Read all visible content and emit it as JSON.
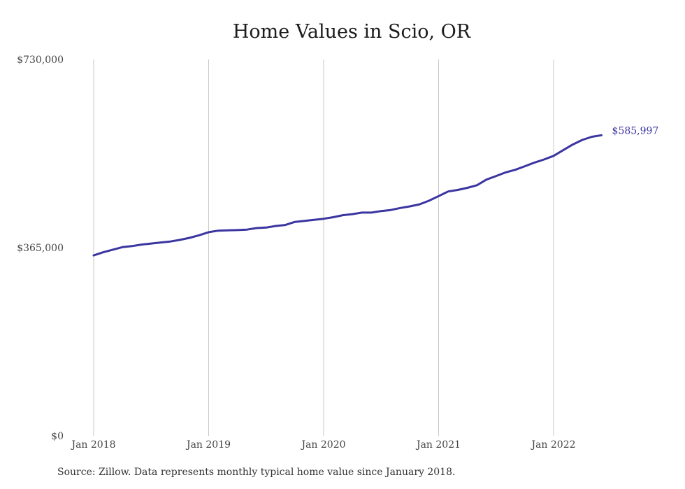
{
  "chart_data": {
    "type": "line",
    "title": "Home Values in Scio, OR",
    "ylim": [
      0,
      730000
    ],
    "yticks": [
      {
        "value": 730000,
        "label": "$730,000"
      },
      {
        "value": 365000,
        "label": "$365,000"
      },
      {
        "value": 0,
        "label": "$0"
      }
    ],
    "xticks": [
      {
        "x": "2018-01",
        "label": "Jan 2018"
      },
      {
        "x": "2019-01",
        "label": "Jan 2019"
      },
      {
        "x": "2020-01",
        "label": "Jan 2020"
      },
      {
        "x": "2021-01",
        "label": "Jan 2021"
      },
      {
        "x": "2022-01",
        "label": "Jan 2022"
      }
    ],
    "xlim": [
      "2018-01",
      "2022-06"
    ],
    "grid": "vertical",
    "series": [
      {
        "color": "#3a35a0",
        "end_label": "$585,997",
        "x": [
          "2018-01",
          "2018-02",
          "2018-03",
          "2018-04",
          "2018-05",
          "2018-06",
          "2018-07",
          "2018-08",
          "2018-09",
          "2018-10",
          "2018-11",
          "2018-12",
          "2019-01",
          "2019-02",
          "2019-03",
          "2019-04",
          "2019-05",
          "2019-06",
          "2019-07",
          "2019-08",
          "2019-09",
          "2019-10",
          "2019-11",
          "2019-12",
          "2020-01",
          "2020-02",
          "2020-03",
          "2020-04",
          "2020-05",
          "2020-06",
          "2020-07",
          "2020-08",
          "2020-09",
          "2020-10",
          "2020-11",
          "2020-12",
          "2021-01",
          "2021-02",
          "2021-03",
          "2021-04",
          "2021-05",
          "2021-06",
          "2021-07",
          "2021-08",
          "2021-09",
          "2021-10",
          "2021-11",
          "2021-12",
          "2022-01",
          "2022-02",
          "2022-03",
          "2022-04",
          "2022-05",
          "2022-06"
        ],
        "values": [
          350000,
          356000,
          361000,
          366000,
          368000,
          371000,
          373000,
          375000,
          377000,
          380000,
          384000,
          389000,
          395000,
          398000,
          398500,
          399000,
          400000,
          403000,
          404000,
          407000,
          409000,
          415000,
          417000,
          419000,
          421000,
          424000,
          428000,
          430000,
          433000,
          433000,
          436000,
          438000,
          442000,
          445000,
          449000,
          456000,
          465000,
          474000,
          477000,
          481000,
          486000,
          497000,
          504000,
          511000,
          516000,
          523000,
          530000,
          536000,
          543000,
          554000,
          565000,
          574000,
          580000,
          583000
        ]
      }
    ]
  },
  "source_note": "Source: Zillow. Data represents monthly typical home value since January 2018."
}
